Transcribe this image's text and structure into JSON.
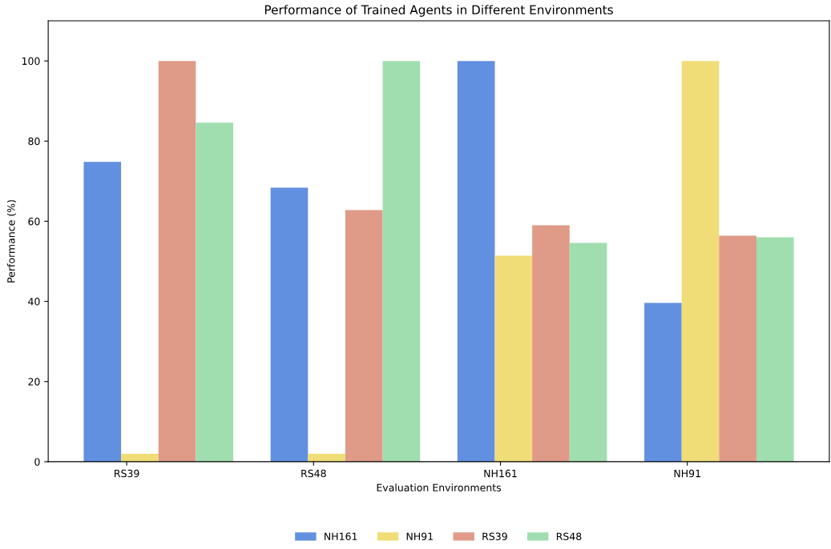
{
  "chart_data": {
    "type": "bar",
    "title": "Performance of Trained Agents in Different Environments",
    "xlabel": "Evaluation Environments",
    "ylabel": "Performance (%)",
    "categories": [
      "RS39",
      "RS48",
      "NH161",
      "NH91"
    ],
    "series": [
      {
        "name": "NH161",
        "color": "#6190e0",
        "values": [
          74.8,
          68.4,
          100,
          39.6
        ]
      },
      {
        "name": "NH91",
        "color": "#f0dd78",
        "values": [
          2,
          2,
          51.4,
          100
        ]
      },
      {
        "name": "RS39",
        "color": "#e09a88",
        "values": [
          100,
          62.8,
          59,
          56.4
        ]
      },
      {
        "name": "RS48",
        "color": "#a0deaf",
        "values": [
          84.6,
          100,
          54.6,
          56
        ]
      }
    ],
    "ylim": [
      0,
      110
    ],
    "yticks": [
      0,
      20,
      40,
      60,
      80,
      100
    ],
    "grid": false,
    "legend": "bottom"
  }
}
